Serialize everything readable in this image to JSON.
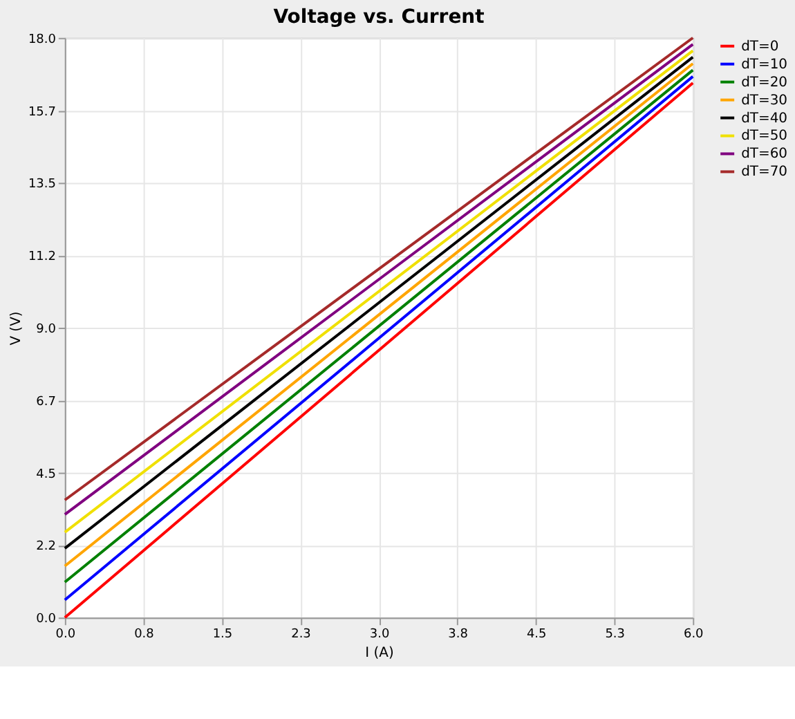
{
  "chart_data": {
    "type": "line",
    "title": "Voltage vs. Current",
    "xlabel": "I (A)",
    "ylabel": "V (V)",
    "x": [
      0,
      6
    ],
    "series": [
      {
        "name": "dT=0",
        "color": "#ff0000",
        "values": [
          0,
          16.6
        ]
      },
      {
        "name": "dT=10",
        "color": "#0000ff",
        "values": [
          0.55,
          16.8
        ]
      },
      {
        "name": "dT=20",
        "color": "#008000",
        "values": [
          1.1,
          17.0
        ]
      },
      {
        "name": "dT=30",
        "color": "#ffa500",
        "values": [
          1.6,
          17.2
        ]
      },
      {
        "name": "dT=40",
        "color": "#000000",
        "values": [
          2.15,
          17.4
        ]
      },
      {
        "name": "dT=50",
        "color": "#f0e000",
        "values": [
          2.65,
          17.6
        ]
      },
      {
        "name": "dT=60",
        "color": "#800080",
        "values": [
          3.2,
          17.8
        ]
      },
      {
        "name": "dT=70",
        "color": "#a52a2a",
        "values": [
          3.65,
          18.0
        ]
      }
    ],
    "xlim": [
      0,
      6
    ],
    "ylim": [
      0,
      18
    ],
    "xticks": [
      {
        "value": 0,
        "label": "0.0"
      },
      {
        "value": 0.75,
        "label": "0.8"
      },
      {
        "value": 1.5,
        "label": "1.5"
      },
      {
        "value": 2.25,
        "label": "2.3"
      },
      {
        "value": 3,
        "label": "3.0"
      },
      {
        "value": 3.75,
        "label": "3.8"
      },
      {
        "value": 4.5,
        "label": "4.5"
      },
      {
        "value": 5.25,
        "label": "5.3"
      },
      {
        "value": 6,
        "label": "6.0"
      }
    ],
    "yticks": [
      {
        "value": 0,
        "label": "0.0"
      },
      {
        "value": 2.25,
        "label": "2.2"
      },
      {
        "value": 4.5,
        "label": "4.5"
      },
      {
        "value": 6.75,
        "label": "6.7"
      },
      {
        "value": 9,
        "label": "9.0"
      },
      {
        "value": 11.25,
        "label": "11.2"
      },
      {
        "value": 13.5,
        "label": "13.5"
      },
      {
        "value": 15.75,
        "label": "15.7"
      },
      {
        "value": 18,
        "label": "18.0"
      }
    ],
    "grid": true,
    "legend": "right",
    "marker": "none",
    "line_style": "solid"
  }
}
